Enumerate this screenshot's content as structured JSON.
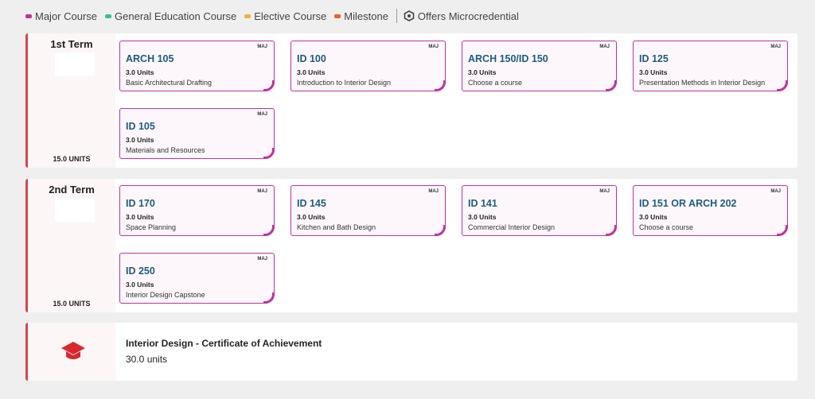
{
  "legend": {
    "items": [
      {
        "label": "Major Course",
        "color": "#c3319e"
      },
      {
        "label": "General Education Course",
        "color": "#3cc08c"
      },
      {
        "label": "Elective Course",
        "color": "#f1b232"
      },
      {
        "label": "Milestone",
        "color": "#e8622a"
      }
    ],
    "microcredential": "Offers Microcredential"
  },
  "terms": [
    {
      "title": "1st Term",
      "units": "15.0 UNITS",
      "courses": [
        {
          "tag": "MAJ",
          "code": "ARCH 105",
          "units": "3.0 Units",
          "name": "Basic Architectural Drafting"
        },
        {
          "tag": "MAJ",
          "code": "ID 100",
          "units": "3.0 Units",
          "name": "Introduction to Interior Design"
        },
        {
          "tag": "MAJ",
          "code": "ARCH 150/ID 150",
          "units": "3.0 Units",
          "name": "Choose a course"
        },
        {
          "tag": "MAJ",
          "code": "ID 125",
          "units": "3.0 Units",
          "name": "Presentation Methods in Interior Design"
        },
        {
          "tag": "MAJ",
          "code": "ID 105",
          "units": "3.0 Units",
          "name": "Materials and Resources"
        }
      ]
    },
    {
      "title": "2nd Term",
      "units": "15.0 UNITS",
      "courses": [
        {
          "tag": "MAJ",
          "code": "ID 170",
          "units": "3.0 Units",
          "name": "Space Planning"
        },
        {
          "tag": "MAJ",
          "code": "ID 145",
          "units": "3.0 Units",
          "name": "Kitchen and Bath Design"
        },
        {
          "tag": "MAJ",
          "code": "ID 141",
          "units": "3.0 Units",
          "name": "Commercial Interior Design"
        },
        {
          "tag": "MAJ",
          "code": "ID 151 OR ARCH 202",
          "units": "3.0 Units",
          "name": "Choose a course"
        },
        {
          "tag": "MAJ",
          "code": "ID 250",
          "units": "3.0 Units",
          "name": "Interior Design Capstone"
        }
      ]
    }
  ],
  "certificate": {
    "title": "Interior Design - Certificate of Achievement",
    "units": "30.0 units",
    "icon": "graduation-cap-icon"
  }
}
